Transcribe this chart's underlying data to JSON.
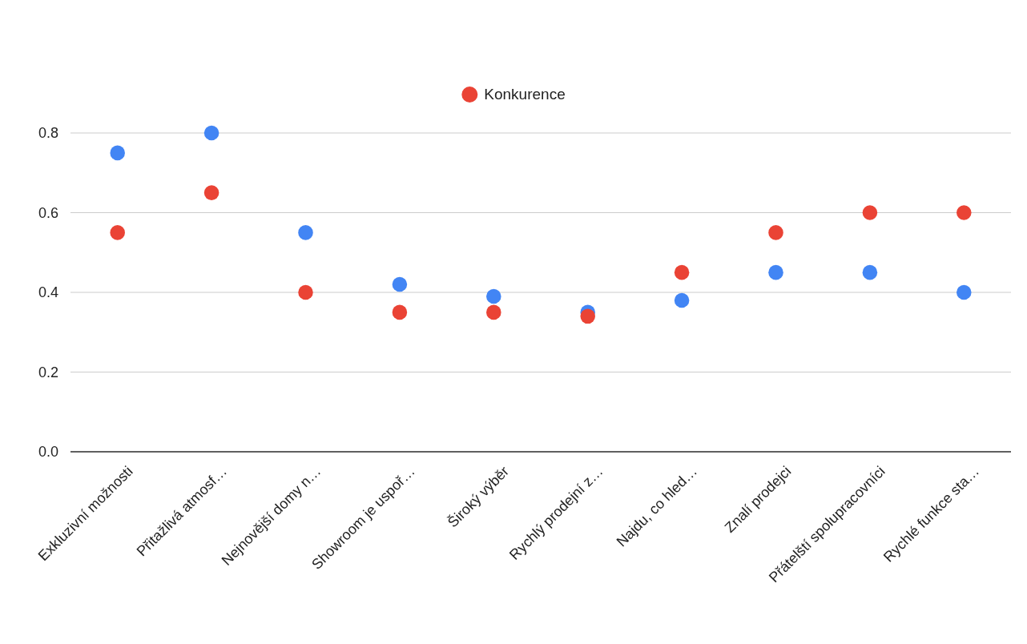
{
  "chart_data": {
    "type": "scatter",
    "categories": [
      "Exkluzivní možnosti",
      "Přitažlivá atmosf…",
      "Nejnovější domy n…",
      "Showroom je uspoř…",
      "Široký výběr",
      "Rychlý prodejní z…",
      "Najdu, co hled…",
      "Znalí prodejci",
      "Přátelští spolupracovníci",
      "Rychlé funkce sta…"
    ],
    "series": [
      {
        "color": "#4285f4",
        "values": [
          0.75,
          0.8,
          0.55,
          0.42,
          0.39,
          0.35,
          0.38,
          0.45,
          0.45,
          0.4
        ]
      },
      {
        "name": "Konkurence",
        "color": "#ea4335",
        "values": [
          0.55,
          0.65,
          0.4,
          0.35,
          0.35,
          0.34,
          0.45,
          0.55,
          0.6,
          0.6
        ]
      }
    ],
    "ylim": [
      0,
      0.8
    ],
    "yticks": [
      {
        "value": 0,
        "label": "0.0"
      },
      {
        "value": 0.2,
        "label": "0.2"
      },
      {
        "value": 0.4,
        "label": "0.4"
      },
      {
        "value": 0.6,
        "label": "0.6"
      },
      {
        "value": 0.8,
        "label": "0.8"
      }
    ],
    "grid": "y",
    "legend": "top",
    "marker": "circle"
  }
}
